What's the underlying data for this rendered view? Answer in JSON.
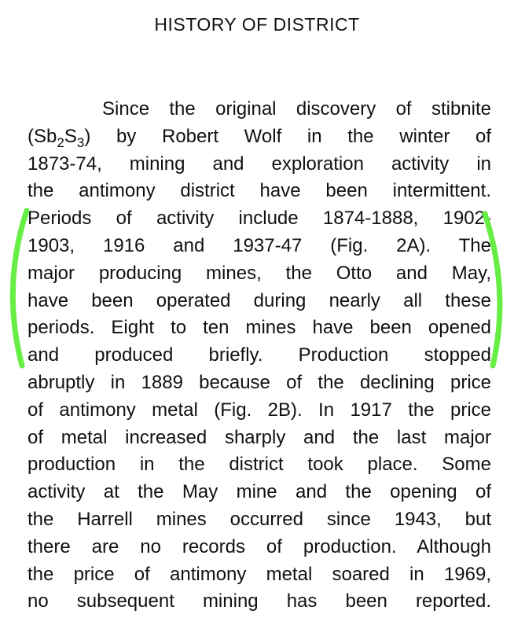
{
  "title": "HISTORY OF DISTRICT",
  "paragraph": {
    "line1": "Since the original discovery of stibnite",
    "line2": {
      "a": "(Sb",
      "b": "2",
      "c": "S",
      "d": "3",
      "e": ") by Robert Wolf in the winter of"
    },
    "lines": [
      "1873-74, mining and exploration activity in",
      "the antimony district have been intermittent.",
      "Periods of activity include 1874-1888, 1902-",
      "1903, 1916 and 1937-47 (Fig. 2A). The",
      "major producing mines, the Otto and May,",
      "have been operated during nearly all these",
      "periods. Eight to ten mines have been opened",
      "and produced briefly. Production stopped",
      "abruptly in 1889 because of the declining price",
      "of antimony metal (Fig. 2B). In 1917 the price",
      "of metal increased sharply and the last major",
      "production in the district took place. Some",
      "activity at the May mine and the opening of",
      "the Harrell mines occurred since 1943, but",
      "there are no records of production. Although",
      "the price of antimony metal soared in 1969,",
      "no subsequent mining has been reported."
    ]
  },
  "highlight_color": "#66ee44"
}
